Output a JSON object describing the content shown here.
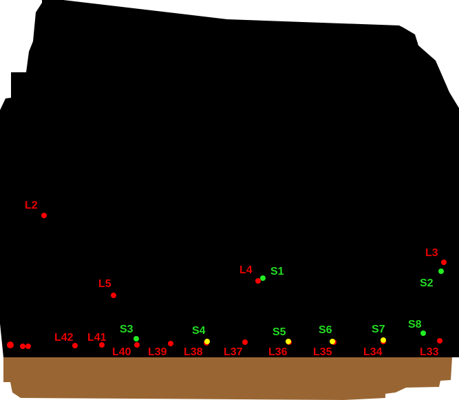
{
  "colors": {
    "background": "#000000",
    "ground": "#996633",
    "landmark": "#ff0000",
    "landmark_label": "#e80000",
    "station": "#22ee22",
    "station_label": "#22dd22",
    "overlap": "#ffff00"
  },
  "landmarks": [
    {
      "id": "L2",
      "label": "L2"
    },
    {
      "id": "L3",
      "label": "L3"
    },
    {
      "id": "L4",
      "label": "L4"
    },
    {
      "id": "L5",
      "label": "L5"
    },
    {
      "id": "L33",
      "label": "L33"
    },
    {
      "id": "L34",
      "label": "L34"
    },
    {
      "id": "L35",
      "label": "L35"
    },
    {
      "id": "L36",
      "label": "L36"
    },
    {
      "id": "L37",
      "label": "L37"
    },
    {
      "id": "L38",
      "label": "L38"
    },
    {
      "id": "L39",
      "label": "L39"
    },
    {
      "id": "L40",
      "label": "L40"
    },
    {
      "id": "L41",
      "label": "L41"
    },
    {
      "id": "L42",
      "label": "L42"
    }
  ],
  "stations": [
    {
      "id": "S1",
      "label": "S1"
    },
    {
      "id": "S2",
      "label": "S2"
    },
    {
      "id": "S3",
      "label": "S3"
    },
    {
      "id": "S4",
      "label": "S4"
    },
    {
      "id": "S5",
      "label": "S5"
    },
    {
      "id": "S6",
      "label": "S6"
    },
    {
      "id": "S7",
      "label": "S7"
    },
    {
      "id": "S8",
      "label": "S8"
    }
  ]
}
